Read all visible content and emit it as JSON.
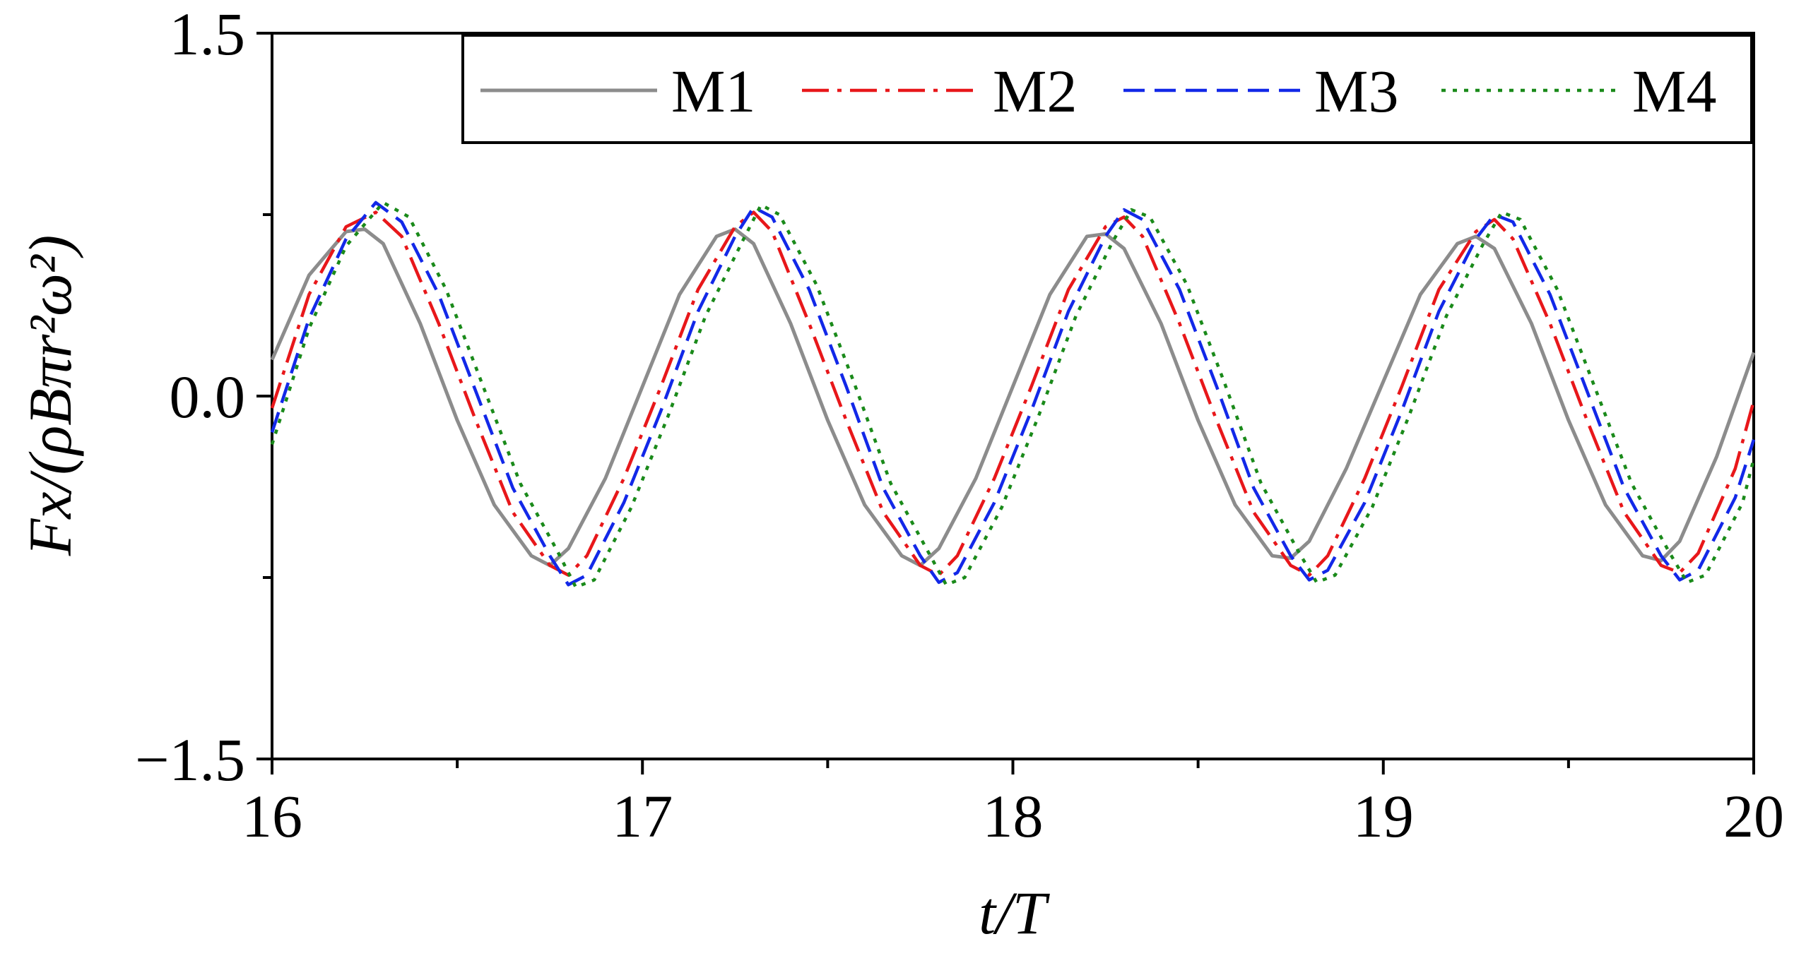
{
  "chart_data": {
    "type": "line",
    "xlabel": "t/T",
    "ylabel": "Fx/(ρBπr²ω²)",
    "xlim": [
      16,
      20
    ],
    "ylim": [
      -1.5,
      1.5
    ],
    "x_ticks": [
      "16",
      "17",
      "18",
      "19",
      "20"
    ],
    "y_ticks": [
      "1.5",
      "0.0",
      "−1.5"
    ],
    "y_tick_values": [
      1.5,
      0.0,
      -1.5
    ],
    "x_tick_values": [
      16,
      17,
      18,
      19,
      20
    ],
    "grid": false,
    "legend_position": "top",
    "series": [
      {
        "name": "M1",
        "color": "#8c8c8c",
        "style": "solid",
        "x": [
          16.0,
          16.1,
          16.2,
          16.25,
          16.3,
          16.4,
          16.5,
          16.6,
          16.7,
          16.75,
          16.8,
          16.9,
          17.0,
          17.1,
          17.2,
          17.25,
          17.3,
          17.4,
          17.5,
          17.6,
          17.7,
          17.75,
          17.8,
          17.9,
          18.0,
          18.1,
          18.2,
          18.25,
          18.3,
          18.4,
          18.5,
          18.6,
          18.7,
          18.75,
          18.8,
          18.9,
          19.0,
          19.1,
          19.2,
          19.25,
          19.3,
          19.4,
          19.5,
          19.6,
          19.7,
          19.75,
          19.8,
          19.9,
          20.0
        ],
        "y": [
          0.15,
          0.5,
          0.68,
          0.69,
          0.63,
          0.3,
          -0.1,
          -0.45,
          -0.66,
          -0.7,
          -0.63,
          -0.34,
          0.04,
          0.42,
          0.66,
          0.69,
          0.63,
          0.3,
          -0.1,
          -0.45,
          -0.66,
          -0.7,
          -0.63,
          -0.34,
          0.04,
          0.42,
          0.66,
          0.67,
          0.61,
          0.3,
          -0.1,
          -0.45,
          -0.66,
          -0.67,
          -0.6,
          -0.3,
          0.06,
          0.42,
          0.63,
          0.66,
          0.61,
          0.3,
          -0.1,
          -0.45,
          -0.66,
          -0.68,
          -0.6,
          -0.25,
          0.18
        ]
      },
      {
        "name": "M2",
        "color": "#e8171a",
        "style": "dashdot",
        "x": [
          16.0,
          16.1,
          16.2,
          16.28,
          16.35,
          16.45,
          16.55,
          16.65,
          16.75,
          16.8,
          16.85,
          16.95,
          17.05,
          17.15,
          17.25,
          17.3,
          17.35,
          17.45,
          17.55,
          17.65,
          17.75,
          17.8,
          17.85,
          17.95,
          18.05,
          18.15,
          18.25,
          18.3,
          18.35,
          18.45,
          18.55,
          18.65,
          18.75,
          18.8,
          18.85,
          18.95,
          19.05,
          19.15,
          19.25,
          19.3,
          19.35,
          19.45,
          19.55,
          19.65,
          19.75,
          19.8,
          19.85,
          19.95,
          20.0
        ],
        "y": [
          -0.05,
          0.42,
          0.7,
          0.76,
          0.66,
          0.3,
          -0.1,
          -0.48,
          -0.7,
          -0.74,
          -0.66,
          -0.34,
          0.04,
          0.44,
          0.7,
          0.76,
          0.68,
          0.3,
          -0.1,
          -0.48,
          -0.7,
          -0.74,
          -0.66,
          -0.34,
          0.04,
          0.44,
          0.7,
          0.74,
          0.66,
          0.3,
          -0.1,
          -0.48,
          -0.7,
          -0.74,
          -0.66,
          -0.34,
          0.04,
          0.44,
          0.68,
          0.73,
          0.65,
          0.3,
          -0.1,
          -0.48,
          -0.7,
          -0.73,
          -0.65,
          -0.3,
          -0.02
        ]
      },
      {
        "name": "M3",
        "color": "#1228e8",
        "style": "dashed",
        "x": [
          16.0,
          16.1,
          16.2,
          16.28,
          16.35,
          16.45,
          16.55,
          16.65,
          16.75,
          16.8,
          16.85,
          16.95,
          17.05,
          17.15,
          17.25,
          17.3,
          17.35,
          17.45,
          17.55,
          17.65,
          17.75,
          17.8,
          17.85,
          17.95,
          18.05,
          18.15,
          18.25,
          18.3,
          18.35,
          18.45,
          18.55,
          18.65,
          18.75,
          18.8,
          18.85,
          18.95,
          19.05,
          19.15,
          19.25,
          19.3,
          19.35,
          19.45,
          19.55,
          19.65,
          19.75,
          19.8,
          19.85,
          19.95,
          20.0
        ],
        "y": [
          -0.15,
          0.32,
          0.65,
          0.8,
          0.72,
          0.42,
          0.02,
          -0.38,
          -0.66,
          -0.78,
          -0.74,
          -0.44,
          -0.06,
          0.35,
          0.66,
          0.78,
          0.74,
          0.44,
          0.04,
          -0.38,
          -0.66,
          -0.77,
          -0.73,
          -0.44,
          -0.06,
          0.35,
          0.66,
          0.77,
          0.73,
          0.44,
          0.04,
          -0.38,
          -0.66,
          -0.76,
          -0.72,
          -0.44,
          -0.06,
          0.35,
          0.65,
          0.75,
          0.72,
          0.42,
          0.02,
          -0.38,
          -0.66,
          -0.76,
          -0.72,
          -0.42,
          -0.18
        ]
      },
      {
        "name": "M4",
        "color": "#1a8a1a",
        "style": "dotted",
        "x": [
          16.0,
          16.1,
          16.2,
          16.3,
          16.37,
          16.47,
          16.57,
          16.67,
          16.77,
          16.82,
          16.87,
          16.97,
          17.07,
          17.17,
          17.27,
          17.32,
          17.37,
          17.47,
          17.57,
          17.67,
          17.77,
          17.82,
          17.87,
          17.97,
          18.07,
          18.17,
          18.27,
          18.32,
          18.37,
          18.47,
          18.57,
          18.67,
          18.77,
          18.82,
          18.87,
          18.97,
          19.07,
          19.17,
          19.27,
          19.32,
          19.37,
          19.47,
          19.57,
          19.67,
          19.77,
          19.82,
          19.87,
          19.97,
          20.0
        ],
        "y": [
          -0.2,
          0.28,
          0.62,
          0.8,
          0.74,
          0.44,
          0.04,
          -0.36,
          -0.64,
          -0.79,
          -0.76,
          -0.46,
          -0.08,
          0.33,
          0.64,
          0.79,
          0.75,
          0.46,
          0.06,
          -0.36,
          -0.64,
          -0.78,
          -0.75,
          -0.46,
          -0.08,
          0.33,
          0.64,
          0.77,
          0.74,
          0.46,
          0.06,
          -0.36,
          -0.64,
          -0.77,
          -0.74,
          -0.46,
          -0.08,
          0.33,
          0.63,
          0.76,
          0.73,
          0.44,
          0.04,
          -0.36,
          -0.64,
          -0.77,
          -0.74,
          -0.44,
          -0.26
        ]
      }
    ]
  }
}
